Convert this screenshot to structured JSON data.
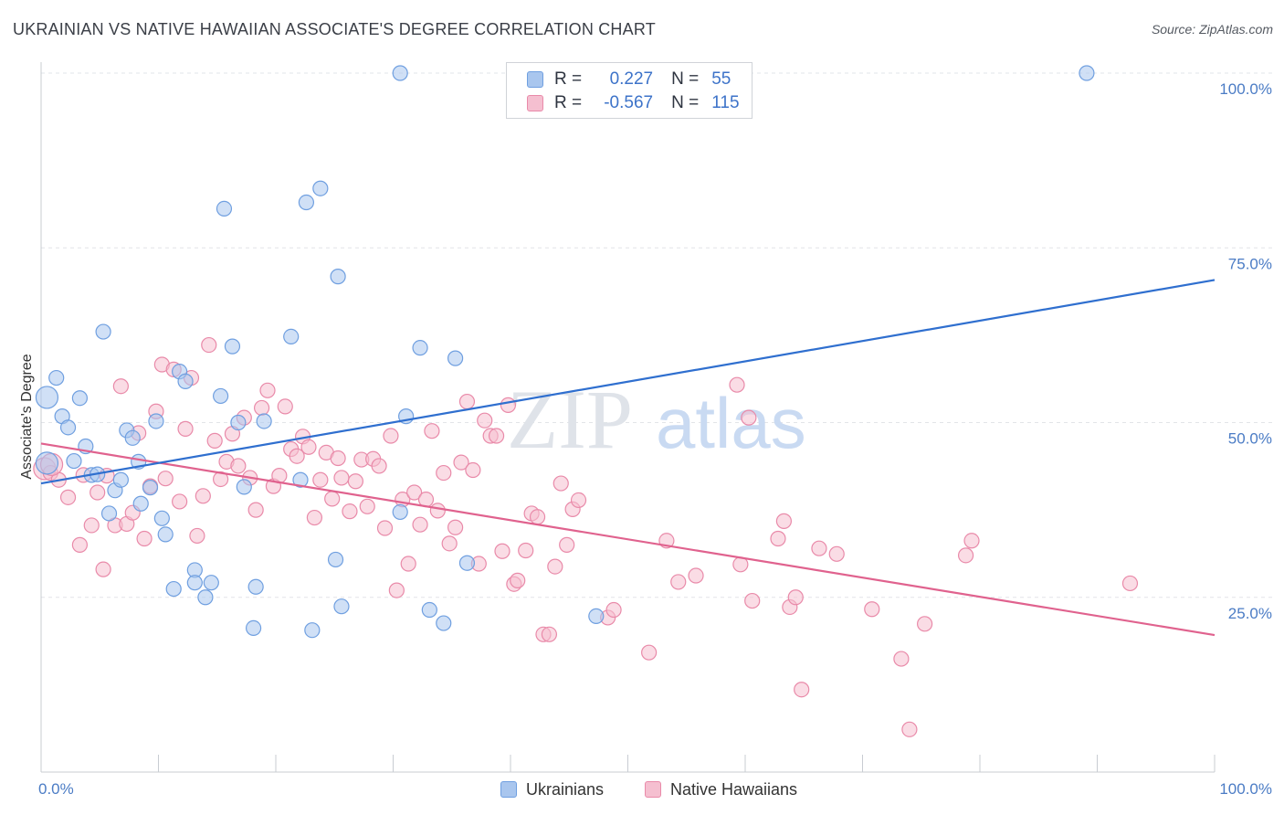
{
  "title": "UKRAINIAN VS NATIVE HAWAIIAN ASSOCIATE'S DEGREE CORRELATION CHART",
  "source": "Source: ZipAtlas.com",
  "watermark": {
    "zip": "ZIP",
    "atlas": "atlas"
  },
  "colors": {
    "blue_fill": "#a9c6ee",
    "blue_stroke": "#6f9fe0",
    "blue_line": "#2f6fcf",
    "pink_fill": "#f5bfd0",
    "pink_stroke": "#e98aa9",
    "pink_line": "#e0628e",
    "tick_text": "#4b7cc5",
    "grid": "#e2e4e8"
  },
  "legend": {
    "rows": [
      {
        "r_label": "R =",
        "r_value": "0.227",
        "n_label": "N =",
        "n_value": "55"
      },
      {
        "r_label": "R =",
        "r_value": "-0.567",
        "n_label": "N =",
        "n_value": "115"
      }
    ]
  },
  "bottom_legend": {
    "ukrainians": "Ukrainians",
    "native_hawaiians": "Native Hawaiians"
  },
  "chart_data": {
    "type": "scatter",
    "title": "UKRAINIAN VS NATIVE HAWAIIAN ASSOCIATE'S DEGREE CORRELATION CHART",
    "xlabel": "",
    "ylabel": "Associate's Degree",
    "xlim": [
      0,
      100
    ],
    "ylim": [
      0,
      100
    ],
    "x_tick_labels": [
      "0.0%",
      "100.0%"
    ],
    "y_ticks": [
      25,
      50,
      75,
      100
    ],
    "y_tick_labels": [
      "25.0%",
      "50.0%",
      "75.0%",
      "100.0%"
    ],
    "grid": true,
    "legend_position": "top-center",
    "series": [
      {
        "name": "Ukrainians",
        "trend": {
          "x": [
            0,
            100
          ],
          "y": [
            41.3,
            70.4
          ]
        },
        "points": [
          [
            0.5,
            44.2
          ],
          [
            0.5,
            53.6
          ],
          [
            1.3,
            56.4
          ],
          [
            1.8,
            50.9
          ],
          [
            2.3,
            49.3
          ],
          [
            3.3,
            53.5
          ],
          [
            2.8,
            44.5
          ],
          [
            3.8,
            46.6
          ],
          [
            4.3,
            42.5
          ],
          [
            4.8,
            42.6
          ],
          [
            5.3,
            63.0
          ],
          [
            5.8,
            37.0
          ],
          [
            6.3,
            40.3
          ],
          [
            6.8,
            41.8
          ],
          [
            7.3,
            48.9
          ],
          [
            7.8,
            47.8
          ],
          [
            8.3,
            44.4
          ],
          [
            8.5,
            38.4
          ],
          [
            9.3,
            40.7
          ],
          [
            9.8,
            50.2
          ],
          [
            10.3,
            36.3
          ],
          [
            10.6,
            34.0
          ],
          [
            11.3,
            26.2
          ],
          [
            11.8,
            57.3
          ],
          [
            12.3,
            55.9
          ],
          [
            13.1,
            28.9
          ],
          [
            13.1,
            27.1
          ],
          [
            14.0,
            25.0
          ],
          [
            14.5,
            27.1
          ],
          [
            15.3,
            53.8
          ],
          [
            15.6,
            80.6
          ],
          [
            16.3,
            60.9
          ],
          [
            16.8,
            50.0
          ],
          [
            17.3,
            40.8
          ],
          [
            18.1,
            20.6
          ],
          [
            18.3,
            26.5
          ],
          [
            19.0,
            50.2
          ],
          [
            21.3,
            62.3
          ],
          [
            22.1,
            41.8
          ],
          [
            22.6,
            81.5
          ],
          [
            23.1,
            20.3
          ],
          [
            23.8,
            83.5
          ],
          [
            25.1,
            30.4
          ],
          [
            25.3,
            70.9
          ],
          [
            25.6,
            23.7
          ],
          [
            30.6,
            100
          ],
          [
            30.6,
            37.2
          ],
          [
            31.1,
            50.9
          ],
          [
            32.3,
            60.7
          ],
          [
            33.1,
            23.2
          ],
          [
            34.3,
            21.3
          ],
          [
            35.3,
            59.2
          ],
          [
            36.3,
            29.9
          ],
          [
            47.3,
            22.3
          ],
          [
            89.1,
            100
          ]
        ]
      },
      {
        "name": "Native Hawaiians",
        "trend": {
          "x": [
            0,
            100
          ],
          "y": [
            47.0,
            19.6
          ]
        },
        "points": [
          [
            0.3,
            43.4
          ],
          [
            0.8,
            42.8
          ],
          [
            1.5,
            41.8
          ],
          [
            2.3,
            39.3
          ],
          [
            3.3,
            32.5
          ],
          [
            3.6,
            42.5
          ],
          [
            4.3,
            35.3
          ],
          [
            4.8,
            40.0
          ],
          [
            5.3,
            29.0
          ],
          [
            5.6,
            42.4
          ],
          [
            6.3,
            35.3
          ],
          [
            6.8,
            55.2
          ],
          [
            7.3,
            35.5
          ],
          [
            7.8,
            37.1
          ],
          [
            8.3,
            48.5
          ],
          [
            8.8,
            33.4
          ],
          [
            9.3,
            40.9
          ],
          [
            9.8,
            51.6
          ],
          [
            10.3,
            58.3
          ],
          [
            10.6,
            42.0
          ],
          [
            11.3,
            57.6
          ],
          [
            11.8,
            38.7
          ],
          [
            12.3,
            49.1
          ],
          [
            12.8,
            56.4
          ],
          [
            13.3,
            33.8
          ],
          [
            13.8,
            39.5
          ],
          [
            14.3,
            61.1
          ],
          [
            14.8,
            47.4
          ],
          [
            15.3,
            41.9
          ],
          [
            15.8,
            44.4
          ],
          [
            16.3,
            48.4
          ],
          [
            16.8,
            43.8
          ],
          [
            17.3,
            50.7
          ],
          [
            17.8,
            42.1
          ],
          [
            18.3,
            37.5
          ],
          [
            18.8,
            52.1
          ],
          [
            19.3,
            54.6
          ],
          [
            19.8,
            40.9
          ],
          [
            20.3,
            42.4
          ],
          [
            20.8,
            52.3
          ],
          [
            21.3,
            46.2
          ],
          [
            21.8,
            45.2
          ],
          [
            22.3,
            48.0
          ],
          [
            22.8,
            46.5
          ],
          [
            23.3,
            36.4
          ],
          [
            23.8,
            41.8
          ],
          [
            24.3,
            45.7
          ],
          [
            24.8,
            39.1
          ],
          [
            25.3,
            44.9
          ],
          [
            25.6,
            42.1
          ],
          [
            26.3,
            37.3
          ],
          [
            26.8,
            41.6
          ],
          [
            27.3,
            44.7
          ],
          [
            27.8,
            38.0
          ],
          [
            28.3,
            44.8
          ],
          [
            28.8,
            43.8
          ],
          [
            29.3,
            34.9
          ],
          [
            29.8,
            48.1
          ],
          [
            30.3,
            26.0
          ],
          [
            30.8,
            39.0
          ],
          [
            31.3,
            29.8
          ],
          [
            31.8,
            40.0
          ],
          [
            32.3,
            35.4
          ],
          [
            32.8,
            39.0
          ],
          [
            33.3,
            48.8
          ],
          [
            33.8,
            37.4
          ],
          [
            34.3,
            42.8
          ],
          [
            34.8,
            32.7
          ],
          [
            35.3,
            35.0
          ],
          [
            35.8,
            44.3
          ],
          [
            36.3,
            53.0
          ],
          [
            36.8,
            43.2
          ],
          [
            37.3,
            29.8
          ],
          [
            37.8,
            50.3
          ],
          [
            38.3,
            48.1
          ],
          [
            38.8,
            48.1
          ],
          [
            39.3,
            31.6
          ],
          [
            39.8,
            52.5
          ],
          [
            40.3,
            26.9
          ],
          [
            40.6,
            27.4
          ],
          [
            41.3,
            31.7
          ],
          [
            41.8,
            37.0
          ],
          [
            42.3,
            36.5
          ],
          [
            42.8,
            19.7
          ],
          [
            43.3,
            19.7
          ],
          [
            43.8,
            29.4
          ],
          [
            44.3,
            41.3
          ],
          [
            44.8,
            32.5
          ],
          [
            45.3,
            37.6
          ],
          [
            45.8,
            38.9
          ],
          [
            48.3,
            22.1
          ],
          [
            48.8,
            23.2
          ],
          [
            51.8,
            17.1
          ],
          [
            53.3,
            33.1
          ],
          [
            54.3,
            27.2
          ],
          [
            55.8,
            28.1
          ],
          [
            59.3,
            55.4
          ],
          [
            59.6,
            29.7
          ],
          [
            60.3,
            50.7
          ],
          [
            60.6,
            24.5
          ],
          [
            62.8,
            33.4
          ],
          [
            63.3,
            35.9
          ],
          [
            63.8,
            23.6
          ],
          [
            64.3,
            25.0
          ],
          [
            64.8,
            11.8
          ],
          [
            66.3,
            32.0
          ],
          [
            67.8,
            31.2
          ],
          [
            70.8,
            23.3
          ],
          [
            73.3,
            16.2
          ],
          [
            74.0,
            6.1
          ],
          [
            75.3,
            21.2
          ],
          [
            78.8,
            31.0
          ],
          [
            79.3,
            33.1
          ],
          [
            92.8,
            27.0
          ],
          [
            0.9,
            44.0
          ]
        ]
      }
    ]
  }
}
